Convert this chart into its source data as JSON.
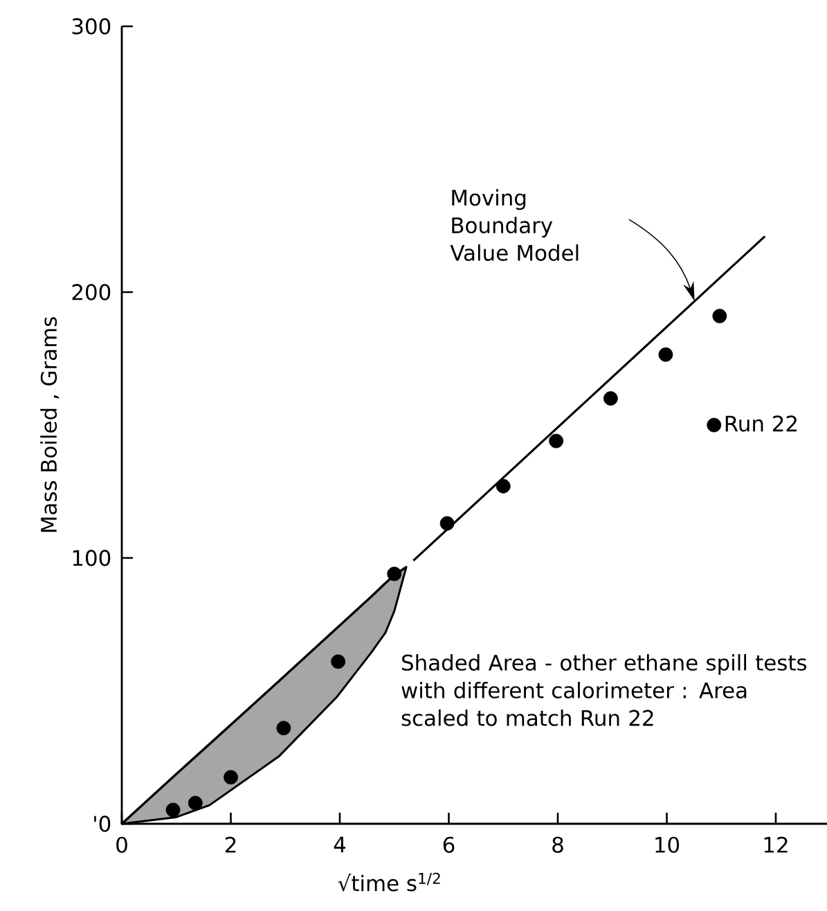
{
  "chart_data": {
    "type": "scatter",
    "xlabel": "√time   s$^{1/2}$",
    "ylabel": "Mass  Boiled , Grams",
    "xlim": [
      0,
      12.94
    ],
    "ylim": [
      0,
      300
    ],
    "xticks": [
      0,
      2,
      4,
      6,
      8,
      10,
      12
    ],
    "yticks": [
      {
        "value": 0,
        "label": "'0"
      },
      100,
      200,
      300
    ],
    "grid": false,
    "legend": "right",
    "series": [
      {
        "type": "line",
        "color": "#000000",
        "x": [
          0,
          1,
          1.61,
          2.88,
          3.95,
          4.58,
          4.84,
          5.0,
          5.22
        ],
        "values": [
          0,
          18.7,
          30,
          53.6,
          73.7,
          85.5,
          90.6,
          93.5,
          96.6
        ],
        "lower": [
          0,
          2.5,
          7,
          25.3,
          47.8,
          64.5,
          72,
          80,
          96.6
        ],
        "upper": [
          0,
          18.7,
          30,
          53.6,
          73.7,
          85.5,
          90.6,
          93.5,
          96.6
        ]
      },
      {
        "type": "line",
        "color": "#000000",
        "x": [
          5.35,
          11.8
        ],
        "values": [
          99,
          221
        ]
      },
      {
        "name": "Run 22",
        "marker": "circle",
        "color": "#000000",
        "x": [
          0.94,
          1.35,
          2,
          2.97,
          3.97,
          5,
          5.97,
          7,
          7.97,
          8.97,
          9.98,
          10.97
        ],
        "values": [
          5.2,
          7.8,
          17.5,
          36,
          61,
          94,
          113,
          127,
          144,
          160,
          176.5,
          191
        ]
      }
    ],
    "annotations": [
      "Moving Boundary Value Model",
      "Shaded Area - other ethane spill tests with different calorimeter : Area scaled to match Run 22"
    ]
  }
}
